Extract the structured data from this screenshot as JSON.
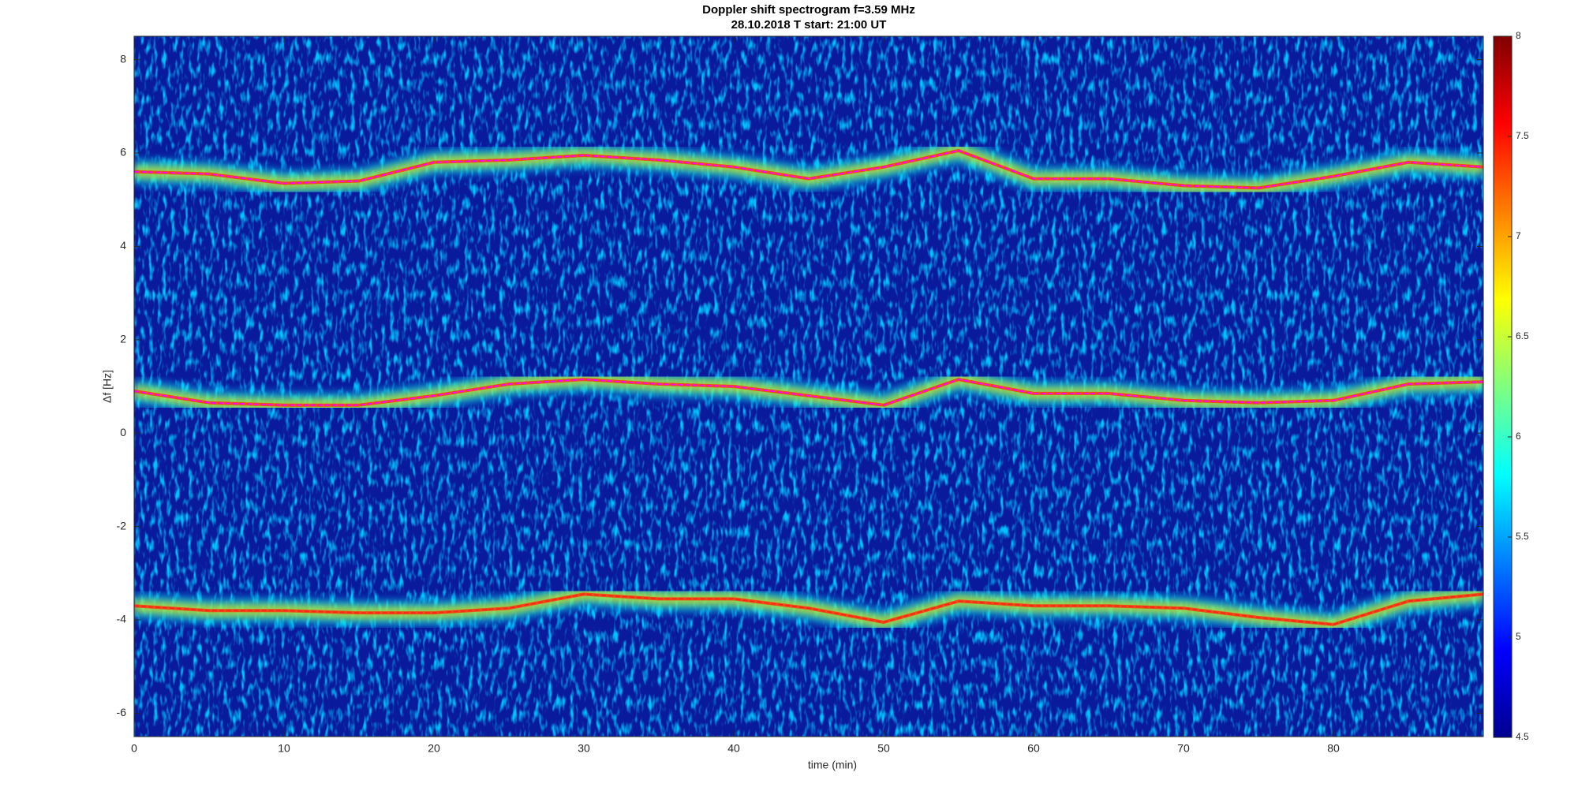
{
  "chart_data": {
    "type": "spectrogram",
    "title": "Doppler shift spectrogram f=3.59 MHz",
    "subtitle": "28.10.2018   T start: 21:00 UT",
    "xlabel": "time (min)",
    "ylabel": "Δf [Hz]",
    "xlim": [
      0,
      90
    ],
    "xticks": [
      0,
      10,
      20,
      30,
      40,
      50,
      60,
      70,
      80
    ],
    "ylim": [
      -6.5,
      8.5
    ],
    "yticks": [
      -6,
      -4,
      -2,
      0,
      2,
      4,
      6,
      8
    ],
    "clim": [
      4.5,
      8
    ],
    "cticks": [
      4.5,
      5,
      5.5,
      6,
      6.5,
      7,
      7.5,
      8
    ],
    "colormap": "jet",
    "x": [
      0,
      5,
      10,
      15,
      20,
      25,
      30,
      35,
      40,
      45,
      50,
      55,
      60,
      65,
      70,
      75,
      80,
      85,
      90
    ],
    "series": [
      {
        "color": "#ff00ff",
        "values": [
          5.6,
          5.55,
          5.35,
          5.4,
          5.8,
          5.85,
          5.95,
          5.85,
          5.7,
          5.45,
          5.7,
          6.05,
          5.45,
          5.45,
          5.3,
          5.25,
          5.5,
          5.8,
          5.7
        ]
      },
      {
        "color": "#ff00ff",
        "values": [
          0.9,
          0.65,
          0.6,
          0.6,
          0.8,
          1.05,
          1.15,
          1.05,
          1.0,
          0.8,
          0.6,
          1.15,
          0.85,
          0.85,
          0.7,
          0.65,
          0.7,
          1.05,
          1.1
        ]
      },
      {
        "color": "#ff2020",
        "values": [
          -3.7,
          -3.8,
          -3.8,
          -3.85,
          -3.85,
          -3.75,
          -3.45,
          -3.55,
          -3.55,
          -3.75,
          -4.05,
          -3.6,
          -3.7,
          -3.7,
          -3.75,
          -3.95,
          -4.1,
          -3.6,
          -3.45
        ]
      }
    ]
  }
}
